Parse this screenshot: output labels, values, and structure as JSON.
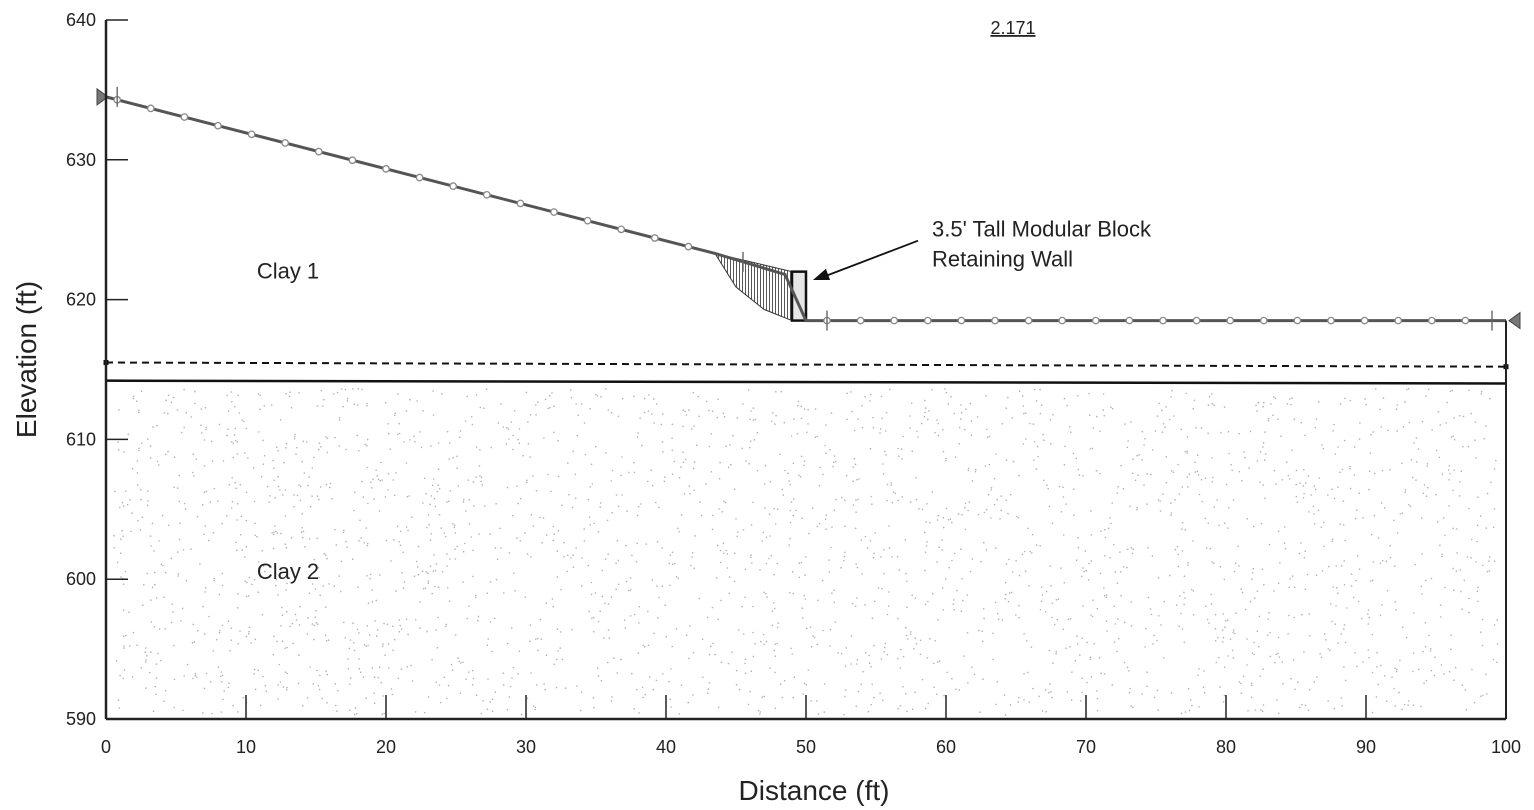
{
  "chart_data": {
    "type": "slope-stability-cross-section",
    "factor_of_safety": "2.171",
    "xlabel": "Distance (ft)",
    "ylabel": "Elevation (ft)",
    "xlim": [
      0,
      100
    ],
    "ylim": [
      590,
      640
    ],
    "x_ticks": [
      0,
      10,
      20,
      30,
      40,
      50,
      60,
      70,
      80,
      90,
      100
    ],
    "y_ticks": [
      590,
      600,
      610,
      620,
      630,
      640
    ],
    "ground_surface": {
      "x": [
        0,
        43.5,
        48.5,
        50,
        100
      ],
      "y": [
        634.5,
        623.3,
        621.8,
        618.5,
        618.5
      ]
    },
    "water_table": {
      "x": [
        0,
        100
      ],
      "y": [
        615.5,
        615.2
      ]
    },
    "layer_boundary": {
      "x": [
        0,
        100
      ],
      "y": [
        614.2,
        614.0
      ]
    },
    "retaining_wall": {
      "x": [
        49,
        50
      ],
      "y_bottom": 618.5,
      "y_top": 622.0
    },
    "slip_surface": {
      "x": [
        43.5,
        45,
        47,
        49
      ],
      "y": [
        623.3,
        620.9,
        619.3,
        618.5
      ]
    },
    "materials": [
      {
        "name": "Clay 1",
        "label_x": 13,
        "label_y": 621.5
      },
      {
        "name": "Clay 2",
        "label_x": 13,
        "label_y": 600
      }
    ],
    "annotation": {
      "lines": [
        "3.5' Tall Modular Block",
        "Retaining Wall"
      ],
      "text_x": 59,
      "text_y": 624.5,
      "arrow_to_x": 50.5,
      "arrow_to_y": 621.4
    },
    "colors": {
      "ground_line": "#555555",
      "node_marker": "#888888",
      "slip_hatch": "#444444",
      "clay2_dots": "#b0b0b0",
      "axis": "#222222"
    }
  }
}
